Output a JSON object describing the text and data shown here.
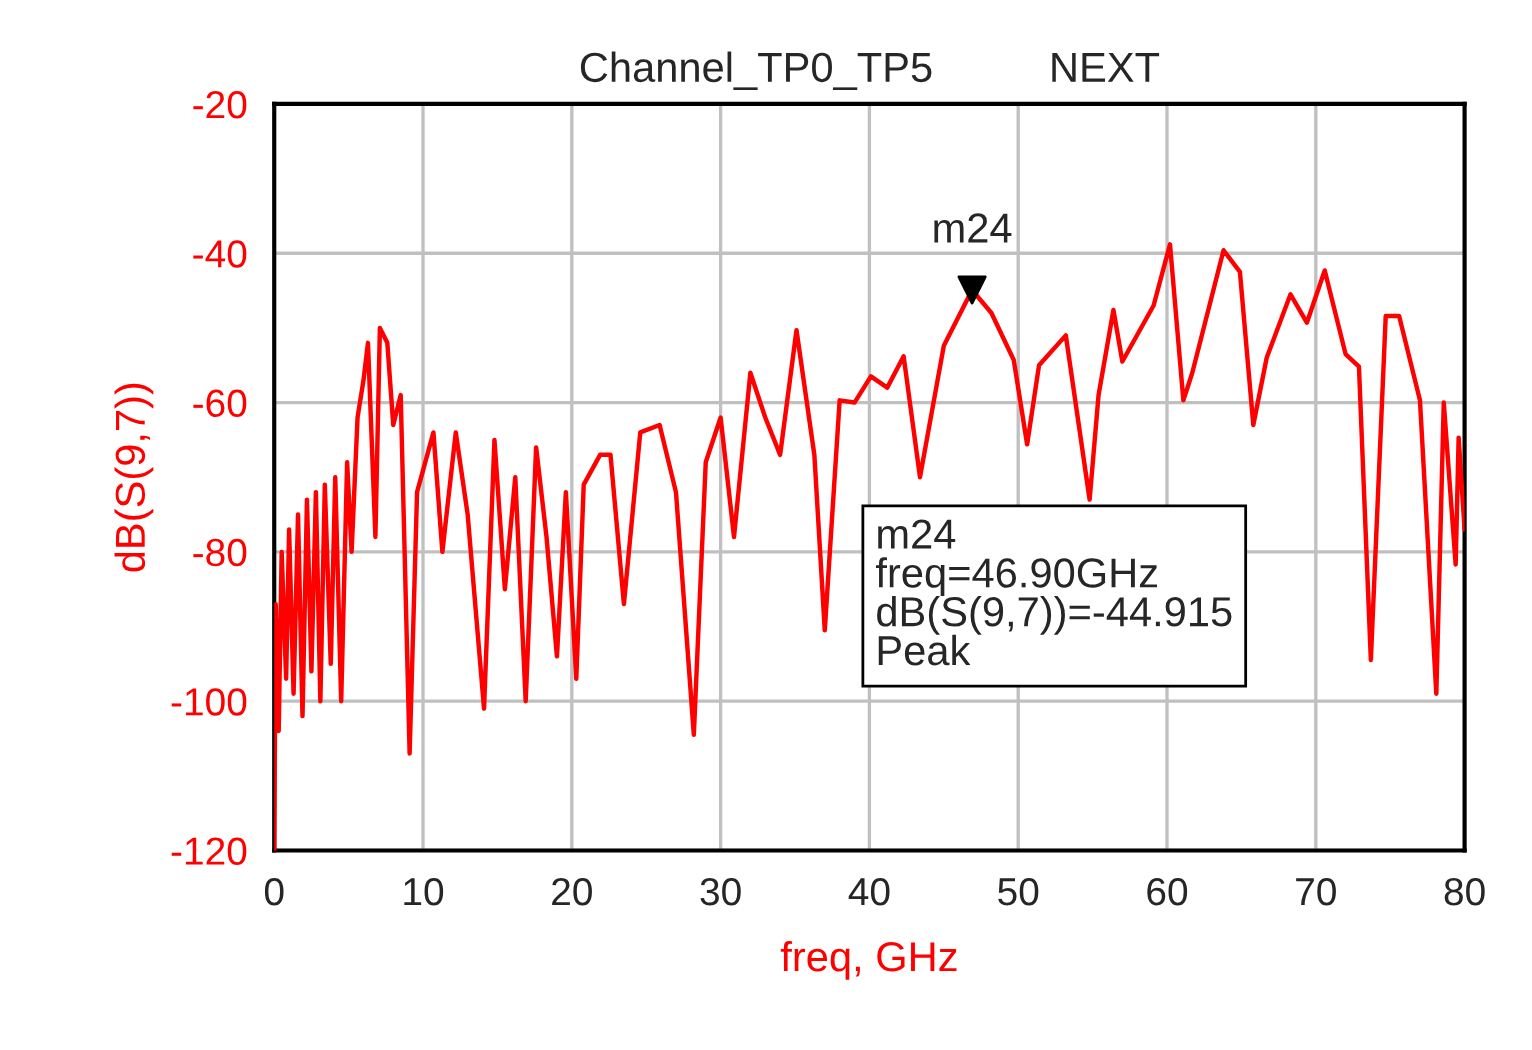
{
  "chart_data": {
    "type": "line",
    "title": "Channel_TP0_TP5          NEXT",
    "xlabel": "freq, GHz",
    "ylabel": "dB(S(9,7))",
    "xlim": [
      0,
      80
    ],
    "ylim": [
      -120,
      -20
    ],
    "xticks": [
      0,
      10,
      20,
      30,
      40,
      50,
      60,
      70,
      80
    ],
    "yticks": [
      -120,
      -100,
      -80,
      -60,
      -40,
      -20
    ],
    "grid": true,
    "series": [
      {
        "color": "#ff0000",
        "x": [
          0,
          0.1,
          0.3,
          0.5,
          0.8,
          1.0,
          1.3,
          1.6,
          1.9,
          2.2,
          2.5,
          2.8,
          3.1,
          3.4,
          3.8,
          4.1,
          4.5,
          4.9,
          5.2,
          5.6,
          6.0,
          6.3,
          6.8,
          7.1,
          7.6,
          8.0,
          8.5,
          9.1,
          9.6,
          10.7,
          11.3,
          12.2,
          13.0,
          14.1,
          14.8,
          15.5,
          16.2,
          16.9,
          17.6,
          18.3,
          19.0,
          19.6,
          20.3,
          20.8,
          21.9,
          22.6,
          23.5,
          24.6,
          25.9,
          27.0,
          28.2,
          29.0,
          30.0,
          30.9,
          32.0,
          33.0,
          34.0,
          35.1,
          36.3,
          37.0,
          38.0,
          39.0,
          40.1,
          41.2,
          42.3,
          43.4,
          45.0,
          46.9,
          48.2,
          49.7,
          50.6,
          51.4,
          53.2,
          54.8,
          55.4,
          56.4,
          57.0,
          59.1,
          60.2,
          61.1,
          61.7,
          63.8,
          64.9,
          65.8,
          66.7,
          68.3,
          69.4,
          70.6,
          72.0,
          72.9,
          73.7,
          74.7,
          75.6,
          77.0,
          78.1,
          78.6,
          79.4,
          79.6,
          80.0
        ],
        "values": [
          -120,
          -87,
          -104,
          -80,
          -97,
          -77,
          -99,
          -75,
          -102,
          -73,
          -96,
          -72,
          -100,
          -71,
          -95,
          -70,
          -100,
          -68,
          -80,
          -62,
          -57,
          -52,
          -78,
          -50,
          -52,
          -63,
          -59,
          -107,
          -72,
          -64,
          -80,
          -64,
          -75,
          -101,
          -65,
          -85,
          -70,
          -100,
          -66,
          -78,
          -94,
          -72,
          -97,
          -71,
          -67,
          -67,
          -87,
          -64,
          -63,
          -72,
          -104.5,
          -68,
          -62,
          -78,
          -56,
          -62,
          -67,
          -50.3,
          -67,
          -90.5,
          -59.7,
          -60,
          -56.5,
          -58,
          -53.8,
          -70,
          -52.4,
          -44.915,
          -48,
          -54.3,
          -65.6,
          -55,
          -51,
          -73,
          -59,
          -47.6,
          -54.5,
          -47,
          -38.8,
          -59.7,
          -56,
          -39.6,
          -42.5,
          -63,
          -54,
          -45.5,
          -49.3,
          -42.3,
          -53.5,
          -55.2,
          -94.5,
          -48.4,
          -48.4,
          -59.7,
          -99,
          -60,
          -81.7,
          -64.7,
          -77
        ]
      },
      {
        "type": "scatter",
        "marker": "triangle",
        "color": "#000000",
        "x": [
          46.9
        ],
        "values": [
          -44.915
        ]
      }
    ],
    "annotations": [
      {
        "text": "m24",
        "x": 46.9,
        "y": -44.915
      },
      "m24\nfreq=46.90GHz\ndB(S(9,7))=-44.915\nPeak"
    ]
  }
}
